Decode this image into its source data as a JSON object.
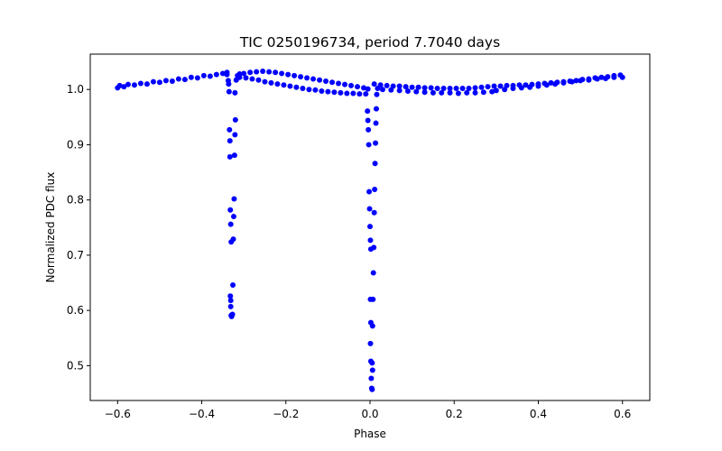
{
  "chart_data": {
    "type": "scatter",
    "title": "TIC 0250196734, period 7.7040 days",
    "xlabel": "Phase",
    "ylabel": "Normalized PDC flux",
    "xlim": [
      -0.665,
      0.665
    ],
    "ylim": [
      0.437,
      1.064
    ],
    "xticks": [
      -0.6,
      -0.4,
      -0.2,
      0.0,
      0.2,
      0.4,
      0.6
    ],
    "xtick_labels": [
      "−0.6",
      "−0.4",
      "−0.2",
      "0.0",
      "0.2",
      "0.4",
      "0.6"
    ],
    "yticks": [
      0.5,
      0.6,
      0.7,
      0.8,
      0.9,
      1.0
    ],
    "ytick_labels": [
      "0.5",
      "0.6",
      "0.7",
      "0.8",
      "0.9",
      "1.0"
    ],
    "grid": false,
    "marker_color": "#0000ff",
    "series": [
      {
        "points": [
          [
            -0.6,
            1.003
          ],
          [
            -0.595,
            1.007
          ],
          [
            -0.585,
            1.005
          ],
          [
            -0.575,
            1.009
          ],
          [
            -0.56,
            1.008
          ],
          [
            -0.545,
            1.011
          ],
          [
            -0.53,
            1.01
          ],
          [
            -0.515,
            1.014
          ],
          [
            -0.5,
            1.013
          ],
          [
            -0.485,
            1.016
          ],
          [
            -0.47,
            1.015
          ],
          [
            -0.455,
            1.019
          ],
          [
            -0.44,
            1.018
          ],
          [
            -0.425,
            1.022
          ],
          [
            -0.41,
            1.021
          ],
          [
            -0.395,
            1.025
          ],
          [
            -0.38,
            1.024
          ],
          [
            -0.365,
            1.027
          ],
          [
            -0.35,
            1.029
          ],
          [
            -0.34,
            1.031
          ],
          [
            -0.34,
            1.027
          ],
          [
            -0.337,
            1.016
          ],
          [
            -0.336,
            1.01
          ],
          [
            -0.335,
            0.996
          ],
          [
            -0.334,
            0.927
          ],
          [
            -0.333,
            0.907
          ],
          [
            -0.333,
            0.878
          ],
          [
            -0.332,
            0.782
          ],
          [
            -0.331,
            0.756
          ],
          [
            -0.33,
            0.724
          ],
          [
            -0.332,
            0.626
          ],
          [
            -0.331,
            0.618
          ],
          [
            -0.331,
            0.607
          ],
          [
            -0.33,
            0.591
          ],
          [
            -0.329,
            0.589
          ],
          [
            -0.327,
            0.593
          ],
          [
            -0.326,
            0.646
          ],
          [
            -0.325,
            0.729
          ],
          [
            -0.324,
            0.77
          ],
          [
            -0.323,
            0.802
          ],
          [
            -0.322,
            0.881
          ],
          [
            -0.321,
            0.918
          ],
          [
            -0.32,
            0.945
          ],
          [
            -0.321,
            0.994
          ],
          [
            -0.318,
            1.017
          ],
          [
            -0.315,
            1.025
          ],
          [
            -0.31,
            1.028
          ],
          [
            -0.3,
            1.029
          ],
          [
            -0.285,
            1.031
          ],
          [
            -0.27,
            1.032
          ],
          [
            -0.255,
            1.033
          ],
          [
            -0.24,
            1.032
          ],
          [
            -0.225,
            1.031
          ],
          [
            -0.21,
            1.029
          ],
          [
            -0.195,
            1.027
          ],
          [
            -0.18,
            1.025
          ],
          [
            -0.165,
            1.023
          ],
          [
            -0.15,
            1.021
          ],
          [
            -0.135,
            1.019
          ],
          [
            -0.12,
            1.017
          ],
          [
            -0.105,
            1.015
          ],
          [
            -0.09,
            1.013
          ],
          [
            -0.075,
            1.011
          ],
          [
            -0.06,
            1.009
          ],
          [
            -0.045,
            1.007
          ],
          [
            -0.03,
            1.005
          ],
          [
            -0.015,
            1.003
          ],
          [
            -0.005,
            1.001
          ],
          [
            -0.31,
            1.022
          ],
          [
            -0.295,
            1.021
          ],
          [
            -0.28,
            1.019
          ],
          [
            -0.265,
            1.017
          ],
          [
            -0.25,
            1.014
          ],
          [
            -0.235,
            1.012
          ],
          [
            -0.22,
            1.01
          ],
          [
            -0.205,
            1.008
          ],
          [
            -0.19,
            1.006
          ],
          [
            -0.175,
            1.004
          ],
          [
            -0.16,
            1.002
          ],
          [
            -0.145,
            1.0
          ],
          [
            -0.13,
            0.999
          ],
          [
            -0.115,
            0.997
          ],
          [
            -0.1,
            0.996
          ],
          [
            -0.085,
            0.995
          ],
          [
            -0.07,
            0.994
          ],
          [
            -0.055,
            0.993
          ],
          [
            -0.04,
            0.993
          ],
          [
            -0.025,
            0.992
          ],
          [
            -0.01,
            0.992
          ],
          [
            -0.006,
            0.961
          ],
          [
            -0.005,
            0.944
          ],
          [
            -0.004,
            0.927
          ],
          [
            -0.003,
            0.9
          ],
          [
            -0.002,
            0.815
          ],
          [
            -0.001,
            0.784
          ],
          [
            0.0,
            0.752
          ],
          [
            0.001,
            0.727
          ],
          [
            0.002,
            0.711
          ],
          [
            0.001,
            0.62
          ],
          [
            0.002,
            0.578
          ],
          [
            0.001,
            0.54
          ],
          [
            0.002,
            0.508
          ],
          [
            0.003,
            0.477
          ],
          [
            0.004,
            0.459
          ],
          [
            0.005,
            0.457
          ],
          [
            0.006,
            0.492
          ],
          [
            0.005,
            0.505
          ],
          [
            0.006,
            0.572
          ],
          [
            0.007,
            0.62
          ],
          [
            0.008,
            0.668
          ],
          [
            0.009,
            0.714
          ],
          [
            0.01,
            0.777
          ],
          [
            0.011,
            0.819
          ],
          [
            0.012,
            0.866
          ],
          [
            0.013,
            0.903
          ],
          [
            0.014,
            0.939
          ],
          [
            0.015,
            0.965
          ],
          [
            0.016,
            0.991
          ],
          [
            0.018,
            1.002
          ],
          [
            0.01,
            1.01
          ],
          [
            0.025,
            1.008
          ],
          [
            0.04,
            1.007
          ],
          [
            0.055,
            1.006
          ],
          [
            0.07,
            1.006
          ],
          [
            0.085,
            1.005
          ],
          [
            0.1,
            1.004
          ],
          [
            0.115,
            1.004
          ],
          [
            0.13,
            1.003
          ],
          [
            0.145,
            1.003
          ],
          [
            0.16,
            1.002
          ],
          [
            0.175,
            1.002
          ],
          [
            0.19,
            1.002
          ],
          [
            0.205,
            1.002
          ],
          [
            0.22,
            1.002
          ],
          [
            0.235,
            1.002
          ],
          [
            0.25,
            1.003
          ],
          [
            0.03,
            1.0
          ],
          [
            0.05,
            0.999
          ],
          [
            0.07,
            0.998
          ],
          [
            0.09,
            0.997
          ],
          [
            0.11,
            0.996
          ],
          [
            0.13,
            0.995
          ],
          [
            0.15,
            0.994
          ],
          [
            0.17,
            0.994
          ],
          [
            0.19,
            0.994
          ],
          [
            0.21,
            0.993
          ],
          [
            0.23,
            0.994
          ],
          [
            0.25,
            0.994
          ],
          [
            0.27,
            0.995
          ],
          [
            0.29,
            0.996
          ],
          [
            0.265,
            1.004
          ],
          [
            0.28,
            1.005
          ],
          [
            0.295,
            1.006
          ],
          [
            0.31,
            1.006
          ],
          [
            0.325,
            1.007
          ],
          [
            0.34,
            1.007
          ],
          [
            0.355,
            1.008
          ],
          [
            0.37,
            1.008
          ],
          [
            0.385,
            1.009
          ],
          [
            0.4,
            1.01
          ],
          [
            0.415,
            1.011
          ],
          [
            0.43,
            1.012
          ],
          [
            0.445,
            1.013
          ],
          [
            0.46,
            1.014
          ],
          [
            0.475,
            1.015
          ],
          [
            0.49,
            1.016
          ],
          [
            0.505,
            1.018
          ],
          [
            0.52,
            1.019
          ],
          [
            0.535,
            1.021
          ],
          [
            0.55,
            1.022
          ],
          [
            0.565,
            1.023
          ],
          [
            0.58,
            1.025
          ],
          [
            0.595,
            1.026
          ],
          [
            0.6,
            1.022
          ],
          [
            0.3,
            0.998
          ],
          [
            0.32,
            1.0
          ],
          [
            0.34,
            1.002
          ],
          [
            0.36,
            1.003
          ],
          [
            0.38,
            1.004
          ],
          [
            0.4,
            1.006
          ],
          [
            0.42,
            1.008
          ],
          [
            0.44,
            1.01
          ],
          [
            0.46,
            1.012
          ],
          [
            0.48,
            1.014
          ],
          [
            0.5,
            1.016
          ],
          [
            0.52,
            1.017
          ],
          [
            0.54,
            1.019
          ],
          [
            0.56,
            1.02
          ],
          [
            0.58,
            1.022
          ]
        ]
      }
    ]
  }
}
